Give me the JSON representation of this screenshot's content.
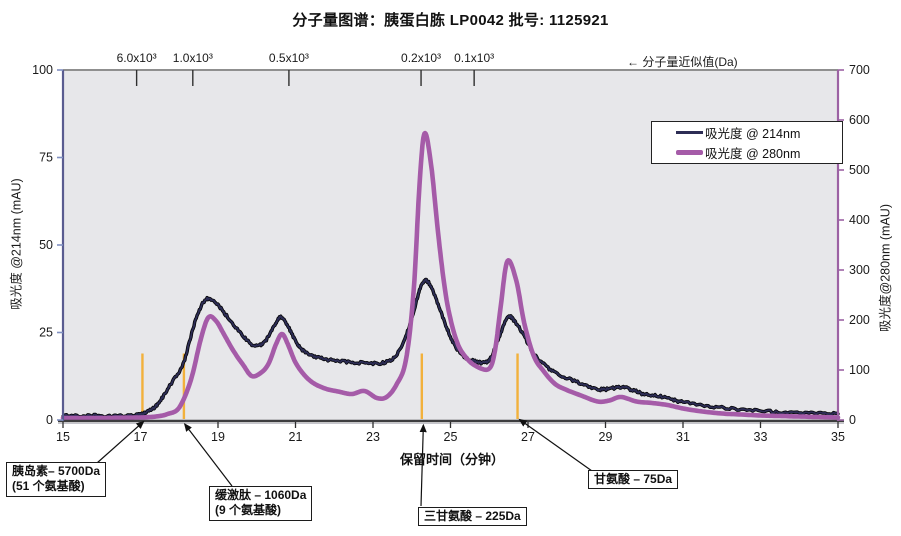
{
  "chart_data": {
    "type": "line",
    "title": "分子量图谱：胰蛋白胨 LP0042  批号: 1125921",
    "x_axis": {
      "label": "保留时间（分钟）",
      "range": [
        15,
        35
      ],
      "ticks": [
        15,
        17,
        19,
        21,
        23,
        25,
        27,
        29,
        31,
        33,
        35
      ]
    },
    "y_left": {
      "label": "吸光度 @214nm (mAU)",
      "range": [
        0,
        100
      ],
      "ticks": [
        0,
        25,
        50,
        75,
        100
      ]
    },
    "y_right": {
      "label": "吸光度@280nm (mAU)",
      "range": [
        0,
        700
      ],
      "ticks": [
        0,
        100,
        200,
        300,
        400,
        500,
        600,
        700
      ]
    },
    "top_axis": {
      "label": "← 分子量近似值(Da)",
      "ticks": [
        {
          "label": "6.0x10³",
          "x": 16.9
        },
        {
          "label": "1.0x10³",
          "x": 18.35
        },
        {
          "label": "0.5x10³",
          "x": 20.83
        },
        {
          "label": "0.2x10³",
          "x": 24.24
        },
        {
          "label": "0.1x10³",
          "x": 25.61
        }
      ]
    },
    "legend": [
      {
        "label": "吸光度 @ 214nm",
        "color": "#2d2d55"
      },
      {
        "label": "吸光度 @ 280nm",
        "color": "#a55ba8"
      }
    ],
    "markers": {
      "color": "#f2b13c",
      "top_value": 19,
      "x": [
        17.05,
        18.12,
        24.26,
        26.73
      ]
    },
    "series": [
      {
        "name": "吸光度 @ 214nm",
        "axis": "left",
        "color": "#2d2d55",
        "outline": "#000000",
        "noisy": true,
        "points": [
          [
            15,
            1.2
          ],
          [
            15.4,
            1.1
          ],
          [
            15.8,
            1.3
          ],
          [
            16.2,
            1.1
          ],
          [
            16.6,
            1.2
          ],
          [
            16.9,
            1.5
          ],
          [
            17.1,
            2
          ],
          [
            17.35,
            3.5
          ],
          [
            17.6,
            7
          ],
          [
            17.85,
            11.5
          ],
          [
            18.1,
            16
          ],
          [
            18.3,
            24
          ],
          [
            18.5,
            31
          ],
          [
            18.7,
            34.5
          ],
          [
            18.9,
            34
          ],
          [
            19.1,
            31.5
          ],
          [
            19.35,
            28
          ],
          [
            19.6,
            24.5
          ],
          [
            19.85,
            21.8
          ],
          [
            20.05,
            21.2
          ],
          [
            20.25,
            23
          ],
          [
            20.45,
            27
          ],
          [
            20.62,
            29.4
          ],
          [
            20.8,
            27
          ],
          [
            21,
            22.5
          ],
          [
            21.2,
            19.8
          ],
          [
            21.5,
            18.2
          ],
          [
            21.8,
            17.3
          ],
          [
            22.2,
            16.8
          ],
          [
            22.6,
            16.4
          ],
          [
            23,
            16.2
          ],
          [
            23.35,
            16.6
          ],
          [
            23.6,
            18.5
          ],
          [
            23.85,
            24
          ],
          [
            24.05,
            31
          ],
          [
            24.2,
            37
          ],
          [
            24.35,
            39.8
          ],
          [
            24.5,
            38
          ],
          [
            24.7,
            32.5
          ],
          [
            24.9,
            26.5
          ],
          [
            25.1,
            21.5
          ],
          [
            25.35,
            18.2
          ],
          [
            25.6,
            16.8
          ],
          [
            25.9,
            16.4
          ],
          [
            26.05,
            18
          ],
          [
            26.25,
            23.5
          ],
          [
            26.47,
            29.4
          ],
          [
            26.65,
            28.2
          ],
          [
            26.9,
            24
          ],
          [
            27.15,
            19
          ],
          [
            27.4,
            16
          ],
          [
            27.7,
            13.5
          ],
          [
            28,
            12
          ],
          [
            28.4,
            10.3
          ],
          [
            28.8,
            8.8
          ],
          [
            29.1,
            8.9
          ],
          [
            29.4,
            9.4
          ],
          [
            29.7,
            8.5
          ],
          [
            30,
            7.4
          ],
          [
            30.35,
            7
          ],
          [
            30.7,
            5.9
          ],
          [
            31,
            5.1
          ],
          [
            31.5,
            4.2
          ],
          [
            32,
            3.5
          ],
          [
            32.5,
            3
          ],
          [
            33,
            2.6
          ],
          [
            33.5,
            2.3
          ],
          [
            34,
            2.1
          ],
          [
            34.5,
            1.9
          ],
          [
            35,
            1.8
          ]
        ]
      },
      {
        "name": "吸光度 @ 280nm",
        "axis": "right",
        "color": "#a55ba8",
        "noisy": false,
        "points": [
          [
            15,
            4
          ],
          [
            15.5,
            4
          ],
          [
            16,
            4
          ],
          [
            16.5,
            4.5
          ],
          [
            17,
            5
          ],
          [
            17.4,
            7
          ],
          [
            17.7,
            12
          ],
          [
            18,
            25
          ],
          [
            18.3,
            80
          ],
          [
            18.55,
            160
          ],
          [
            18.75,
            205
          ],
          [
            18.95,
            198
          ],
          [
            19.15,
            172
          ],
          [
            19.4,
            138
          ],
          [
            19.65,
            110
          ],
          [
            19.87,
            88
          ],
          [
            20.1,
            94
          ],
          [
            20.3,
            112
          ],
          [
            20.5,
            152
          ],
          [
            20.65,
            172
          ],
          [
            20.8,
            152
          ],
          [
            21,
            115
          ],
          [
            21.25,
            88
          ],
          [
            21.5,
            72
          ],
          [
            21.8,
            62
          ],
          [
            22.1,
            57
          ],
          [
            22.45,
            52
          ],
          [
            22.78,
            58
          ],
          [
            23.1,
            44
          ],
          [
            23.35,
            46
          ],
          [
            23.6,
            70
          ],
          [
            23.85,
            120
          ],
          [
            24.05,
            260
          ],
          [
            24.2,
            470
          ],
          [
            24.33,
            573
          ],
          [
            24.5,
            510
          ],
          [
            24.7,
            360
          ],
          [
            24.9,
            240
          ],
          [
            25.15,
            160
          ],
          [
            25.4,
            125
          ],
          [
            25.7,
            106
          ],
          [
            26,
            103
          ],
          [
            26.15,
            140
          ],
          [
            26.3,
            230
          ],
          [
            26.47,
            318
          ],
          [
            26.7,
            278
          ],
          [
            26.9,
            195
          ],
          [
            27.15,
            128
          ],
          [
            27.4,
            98
          ],
          [
            27.7,
            72
          ],
          [
            28,
            60
          ],
          [
            28.4,
            48
          ],
          [
            28.8,
            37
          ],
          [
            29.1,
            39
          ],
          [
            29.4,
            46
          ],
          [
            29.8,
            37
          ],
          [
            30.2,
            34
          ],
          [
            30.6,
            30
          ],
          [
            31,
            23
          ],
          [
            31.5,
            17
          ],
          [
            32,
            13
          ],
          [
            32.5,
            11
          ],
          [
            33,
            9
          ],
          [
            33.5,
            8
          ],
          [
            34,
            7
          ],
          [
            34.5,
            6
          ],
          [
            35,
            5
          ]
        ]
      }
    ],
    "annotations": [
      {
        "lines": [
          "胰岛素– 5700Da",
          "(51 个氨基酸)"
        ],
        "points_to_x": 17.08
      },
      {
        "lines": [
          "缓激肽 – 1060Da",
          "(9 个氨基酸)"
        ],
        "points_to_x": 18.14
      },
      {
        "lines": [
          "三甘氨酸 – 225Da"
        ],
        "points_to_x": 24.3
      },
      {
        "lines": [
          "甘氨酸 – 75Da"
        ],
        "points_to_x": 26.78
      }
    ],
    "colors": {
      "plot_bg": "#e7e7ea",
      "left_axis": "#5a5c90",
      "left_tick": "#8090c2",
      "right_axis": "#9c62a4",
      "top_axis": "#8f8f8f",
      "bottom_axis": "#3d3d3f",
      "marker": "#f2b13c"
    }
  }
}
